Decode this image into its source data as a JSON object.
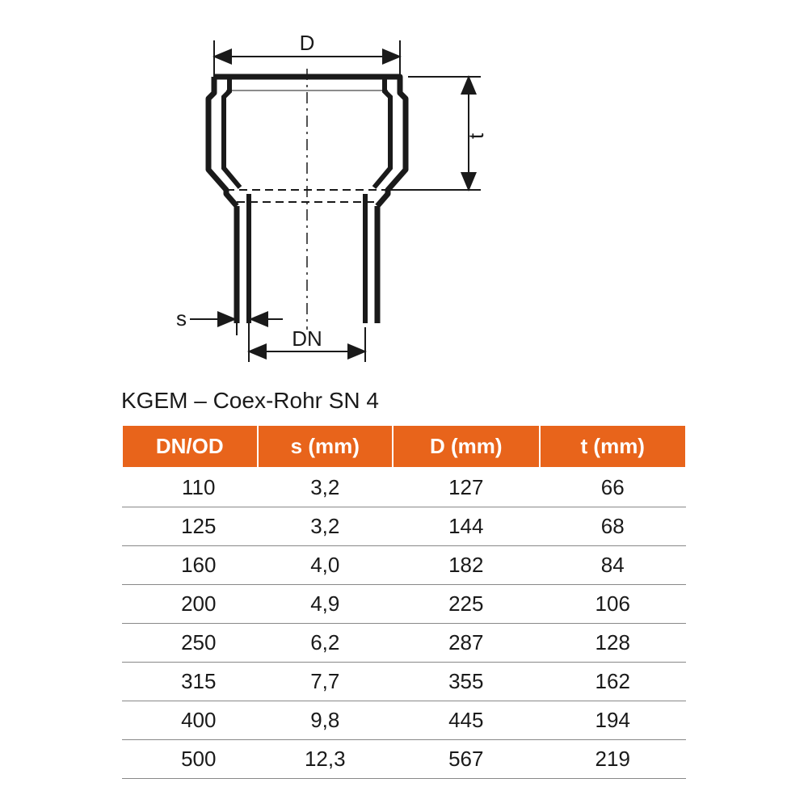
{
  "diagram": {
    "labels": {
      "D": "D",
      "t": "t",
      "s": "s",
      "DN": "DN"
    },
    "stroke_color": "#1a1a1a",
    "stroke_width_main": 7,
    "stroke_width_dim": 2,
    "dash_pattern": "10 6 2 6",
    "socket_outer_width": 230,
    "socket_inner_width": 200,
    "shaft_width": 180,
    "socket_height": 140,
    "shaft_height": 230
  },
  "table": {
    "title": "KGEM – Coex-Rohr SN 4",
    "header_bg": "#e8641b",
    "header_fg": "#ffffff",
    "border_color": "#888888",
    "text_color": "#1a1a1a",
    "font_size_header": 26,
    "font_size_cell": 26,
    "columns": [
      "DN/OD",
      "s (mm)",
      "D (mm)",
      "t (mm)"
    ],
    "rows": [
      [
        "110",
        "3,2",
        "127",
        "66"
      ],
      [
        "125",
        "3,2",
        "144",
        "68"
      ],
      [
        "160",
        "4,0",
        "182",
        "84"
      ],
      [
        "200",
        "4,9",
        "225",
        "106"
      ],
      [
        "250",
        "6,2",
        "287",
        "128"
      ],
      [
        "315",
        "7,7",
        "355",
        "162"
      ],
      [
        "400",
        "9,8",
        "445",
        "194"
      ],
      [
        "500",
        "12,3",
        "567",
        "219"
      ]
    ]
  }
}
